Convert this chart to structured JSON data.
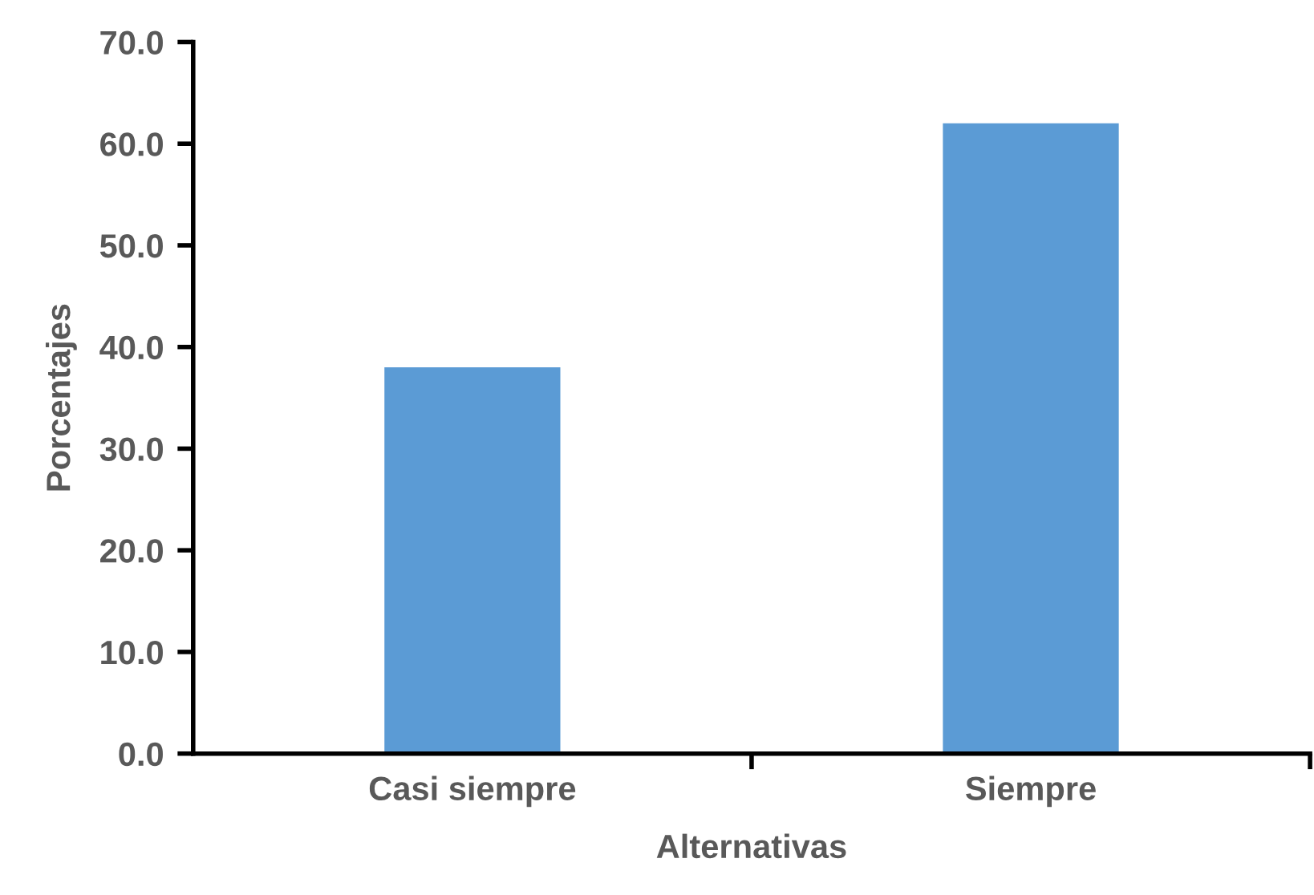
{
  "chart_data": {
    "type": "bar",
    "xlabel": "Alternativas",
    "ylabel": "Porcentajes",
    "categories": [
      "Casi siempre",
      "Siempre"
    ],
    "values": [
      38.0,
      62.0
    ],
    "color": "#5b9bd5",
    "ylim": [
      0,
      70
    ],
    "yticks": [
      {
        "value": 0,
        "label": "0.0"
      },
      {
        "value": 10,
        "label": "10.0"
      },
      {
        "value": 20,
        "label": "20.0"
      },
      {
        "value": 30,
        "label": "30.0"
      },
      {
        "value": 40,
        "label": "40.0"
      },
      {
        "value": 50,
        "label": "50.0"
      },
      {
        "value": 60,
        "label": "60.0"
      },
      {
        "value": 70,
        "label": "70.0"
      }
    ],
    "grid": false,
    "legend": false
  }
}
